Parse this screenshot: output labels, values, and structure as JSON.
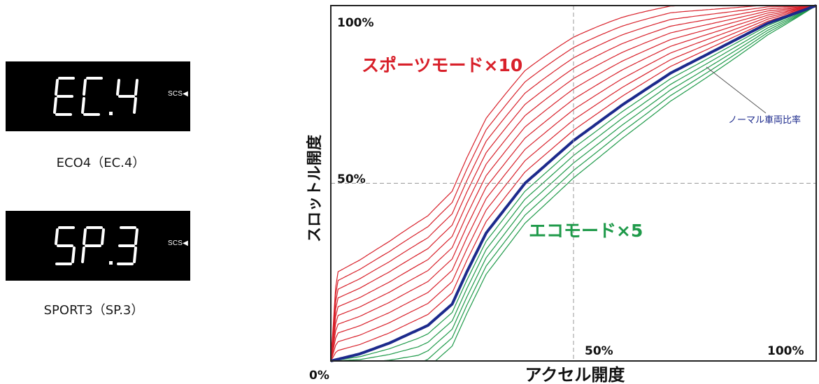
{
  "displays": [
    {
      "readout": "EC.4",
      "indicator": "SCS◀",
      "caption": "ECO4（EC.4）"
    },
    {
      "readout": "SP.3",
      "indicator": "SCS◀",
      "caption": "SPORT3（SP.3）"
    }
  ],
  "colors": {
    "sport": "#d8202a",
    "eco": "#1f9a4a",
    "normal": "#1c2a8c",
    "display_bg": "#000000",
    "segment": "#ffffff"
  },
  "chart_data": {
    "type": "line",
    "title": "",
    "xlabel": "アクセル開度",
    "ylabel": "スロットル開度",
    "xlim": [
      0,
      100
    ],
    "ylim": [
      0,
      100
    ],
    "x_ticks": [
      "0%",
      "50%",
      "100%"
    ],
    "y_ticks": [
      "0%",
      "50%",
      "100%"
    ],
    "reference_lines": {
      "x": 50,
      "y": 50
    },
    "annotations": {
      "sport": "スポーツモード×10",
      "eco": "エコモード×5",
      "normal": "ノーマル車両比率"
    },
    "normal_curve": {
      "x": [
        0,
        6,
        12,
        20,
        25,
        28,
        32,
        40,
        50,
        60,
        70,
        80,
        90,
        100
      ],
      "y": [
        0,
        2,
        5,
        10,
        16,
        25,
        36,
        50,
        62,
        72,
        81,
        88,
        95,
        100
      ]
    },
    "sport_mode_count": 10,
    "eco_mode_count": 5,
    "sport_mode_offsets": [
      2.4,
      4.8,
      7.2,
      9.6,
      12.0,
      14.4,
      16.8,
      19.2,
      21.6,
      24.0
    ],
    "eco_mode_offsets": [
      2.4,
      4.8,
      7.2,
      9.6,
      12.0
    ]
  }
}
